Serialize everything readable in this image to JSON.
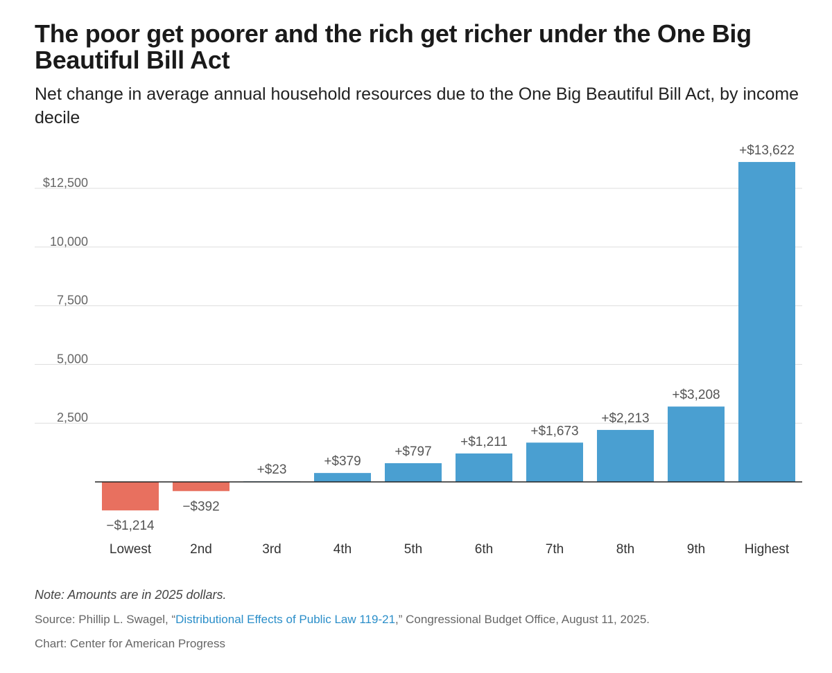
{
  "header": {
    "title": "The poor get poorer and the rich get richer under the One Big Beautiful Bill Act",
    "subtitle": "Net change in average annual household resources due to the One Big Beautiful Bill Act, by income decile"
  },
  "chart_data": {
    "type": "bar",
    "title": "The poor get poorer and the rich get richer under the One Big Beautiful Bill Act",
    "subtitle": "Net change in average annual household resources due to the One Big Beautiful Bill Act, by income decile",
    "xlabel": "",
    "ylabel": "",
    "categories": [
      "Lowest",
      "2nd",
      "3rd",
      "4th",
      "5th",
      "6th",
      "7th",
      "8th",
      "9th",
      "Highest"
    ],
    "values": [
      -1214,
      -392,
      23,
      379,
      797,
      1211,
      1673,
      2213,
      3208,
      13622
    ],
    "data_labels": [
      "−$1,214",
      "−$392",
      "+$23",
      "+$379",
      "+$797",
      "+$1,211",
      "+$1,673",
      "+$2,213",
      "+$3,208",
      "+$13,622"
    ],
    "ylim": [
      -1214,
      13622
    ],
    "yticks": [
      2500,
      5000,
      7500,
      10000,
      12500
    ],
    "ytick_labels": [
      "2,500",
      "5,000",
      "7,500",
      "10,000",
      "$12,500"
    ],
    "grid": true,
    "legend": "none",
    "colors": {
      "positive": "#4a9fd1",
      "negative": "#e8705f"
    }
  },
  "footer": {
    "note": "Note: Amounts are in 2025 dollars.",
    "source_prefix": "Source: Phillip L. Swagel, “",
    "source_link": "Distributional Effects of Public Law 119-21",
    "source_suffix": ",” Congressional Budget Office, August 11, 2025.",
    "credit": "Chart: Center for American Progress"
  }
}
